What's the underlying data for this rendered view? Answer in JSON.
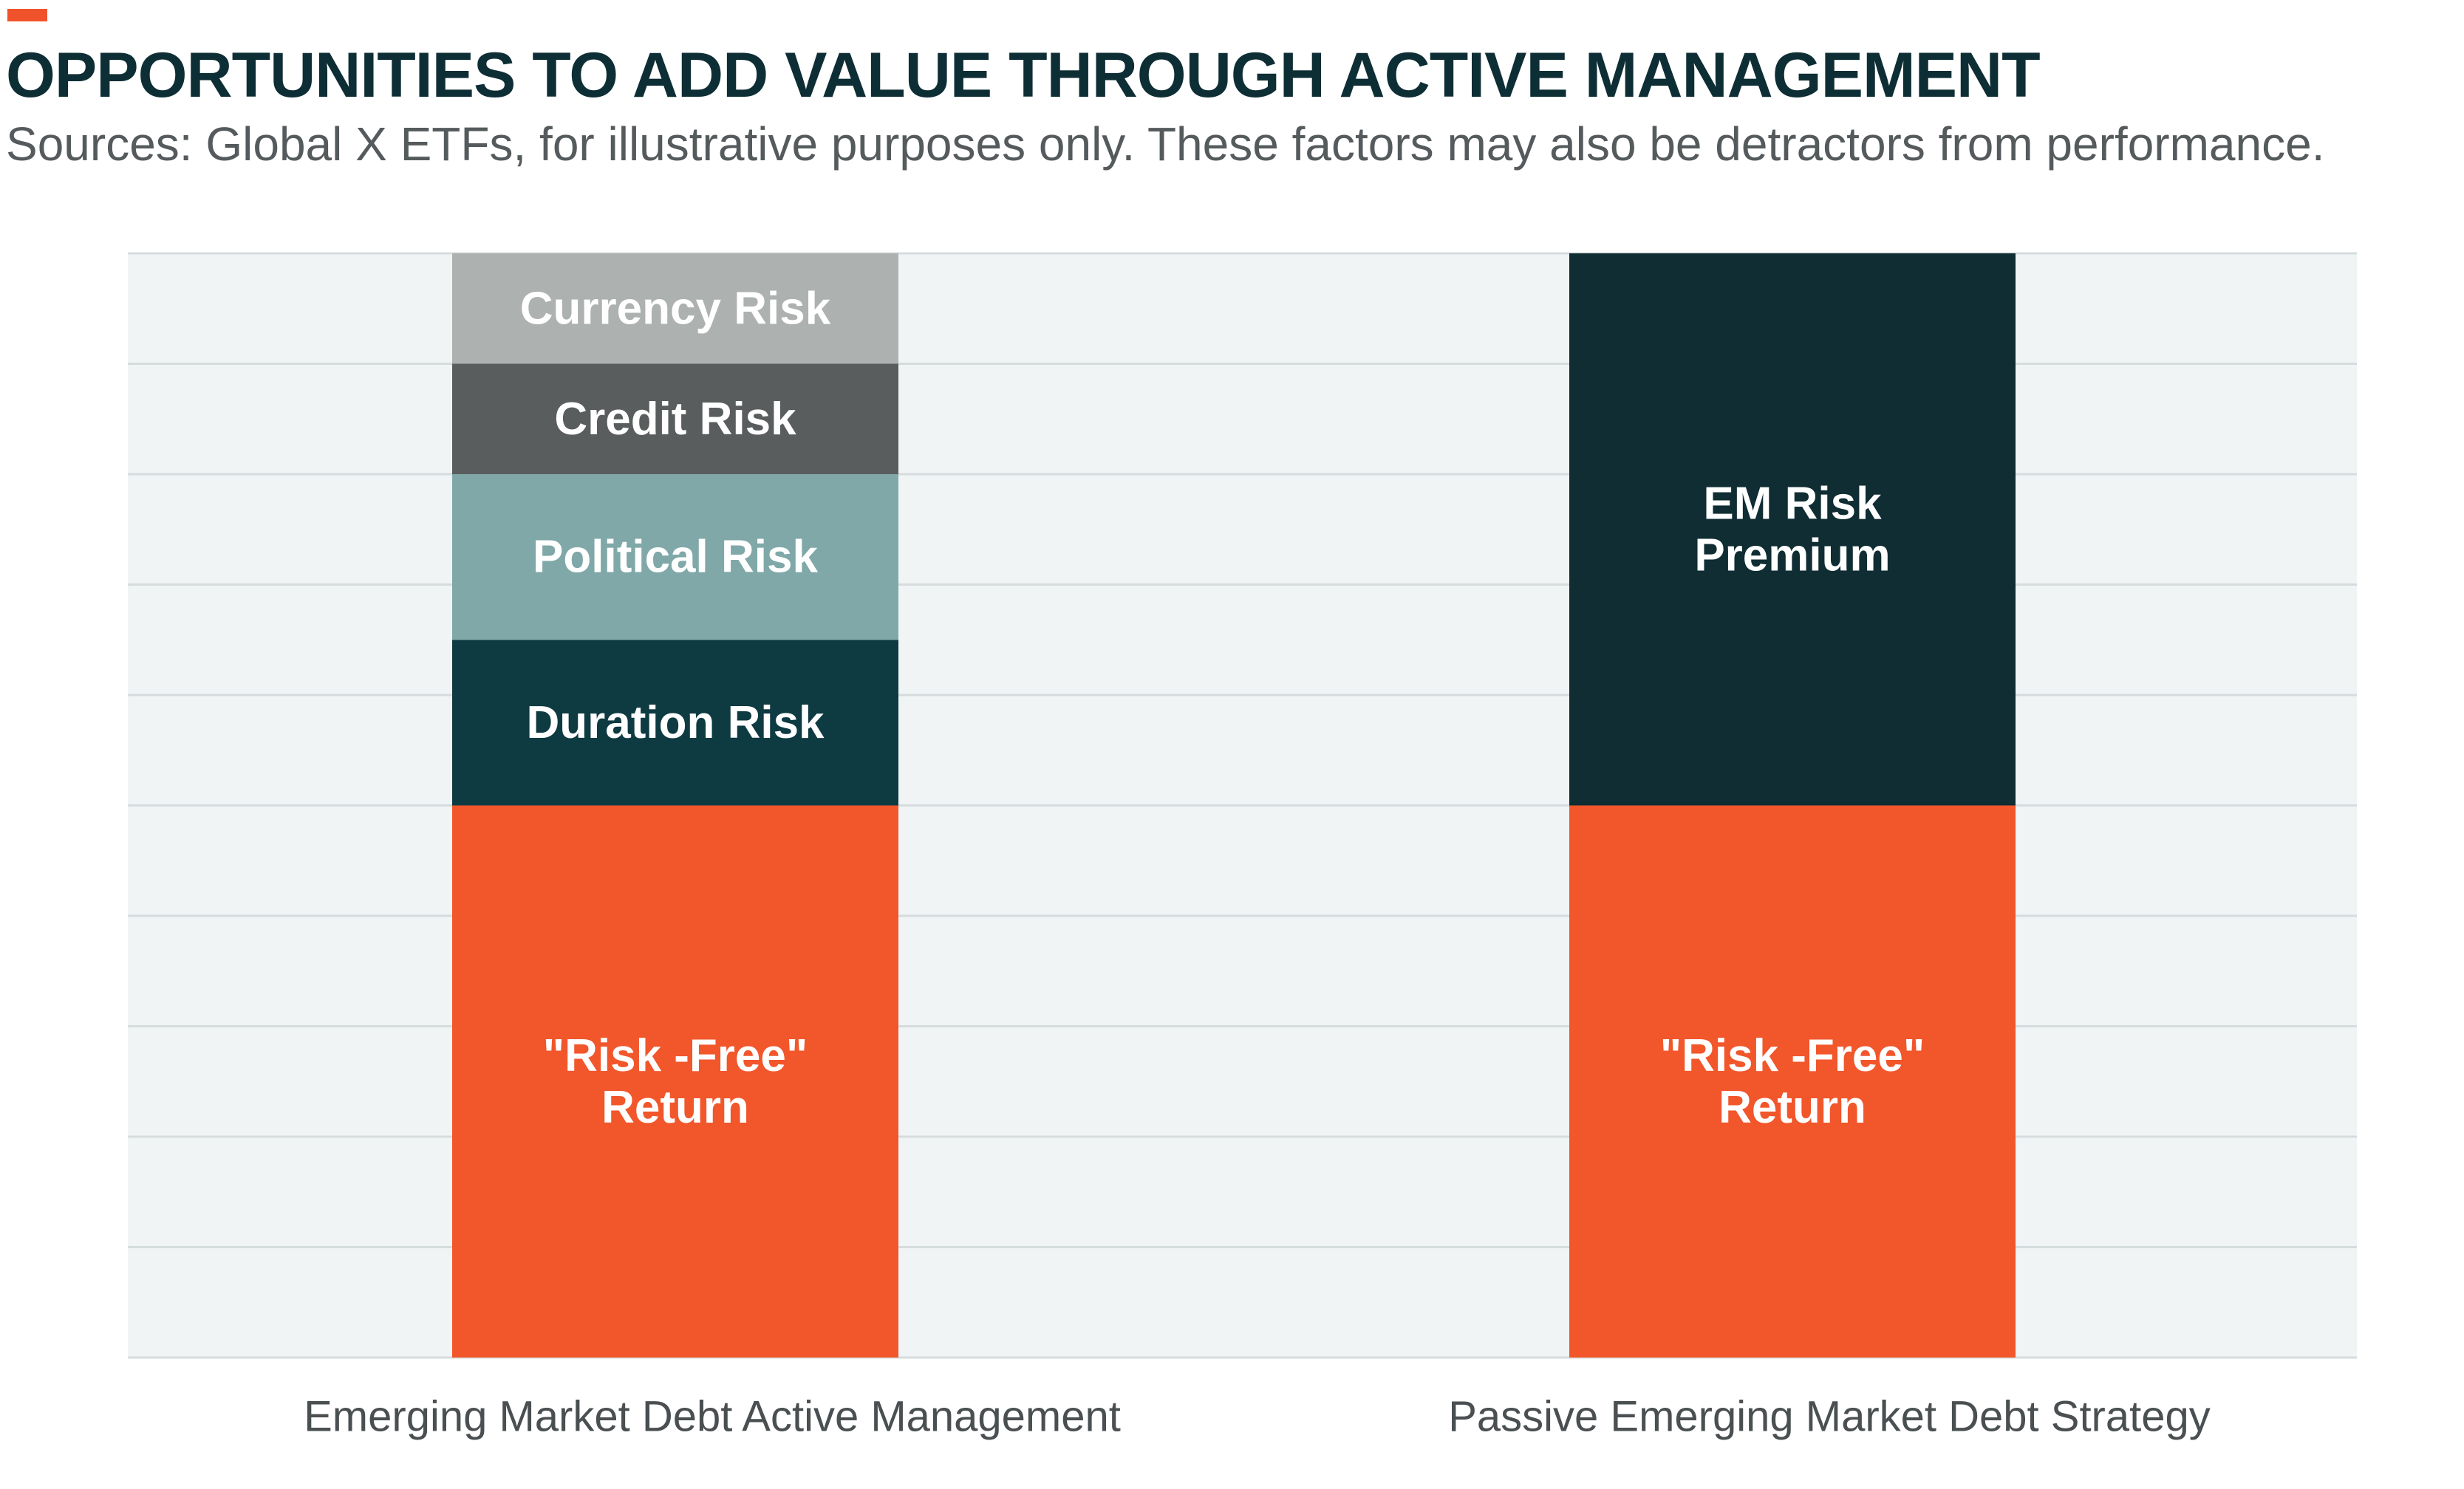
{
  "title": "OPPORTUNITIES TO ADD VALUE THROUGH ACTIVE MANAGEMENT",
  "subtitle": "Sources: Global X ETFs, for illustrative purposes only. These factors may also be detractors from performance.",
  "colors": {
    "accent": "#f0532b",
    "title": "#0e2e35",
    "subtitle": "#555a5c",
    "plot_background": "#f0f4f5",
    "gridline": "#d6dcde",
    "axis_label": "#4a4f51"
  },
  "chart_data": {
    "type": "bar",
    "stacked": true,
    "categories": [
      "Emerging Market Debt Active Management",
      "Passive Emerging Market Debt Strategy"
    ],
    "series": [
      {
        "name": "\"Risk-Free\" Return",
        "label_lines": [
          "\"Risk -Free\"",
          "Return"
        ],
        "values": [
          5,
          5
        ],
        "colors": [
          "#f2562b",
          "#f2562b"
        ],
        "label_color": "#ffffff"
      },
      {
        "name": "Duration Risk",
        "label_lines": [
          "Duration Risk"
        ],
        "values": [
          1.5,
          null
        ],
        "colors": [
          "#0e3a42",
          "#0e3a42"
        ],
        "label_color": "#ffffff"
      },
      {
        "name": "Political Risk",
        "label_lines": [
          "Political Risk"
        ],
        "values": [
          1.5,
          null
        ],
        "colors": [
          "#80a8a8",
          "#80a8a8"
        ],
        "label_color": "#ffffff"
      },
      {
        "name": "Credit Risk",
        "label_lines": [
          "Credit Risk"
        ],
        "values": [
          1,
          null
        ],
        "colors": [
          "#595d5e",
          "#595d5e"
        ],
        "label_color": "#ffffff"
      },
      {
        "name": "Currency Risk",
        "label_lines": [
          "Currency Risk"
        ],
        "values": [
          1,
          null
        ],
        "colors": [
          "#adb1b0",
          "#adb1b0"
        ],
        "label_color": "#ffffff"
      },
      {
        "name": "EM Risk Premium",
        "label_lines": [
          "EM Risk",
          "Premium"
        ],
        "values": [
          null,
          5
        ],
        "colors": [
          "#0f2d33",
          "#0f2d33"
        ],
        "label_color": "#ffffff"
      }
    ],
    "ylim": [
      0,
      10
    ],
    "y_ticks": [
      0,
      1,
      2,
      3,
      4,
      5,
      6,
      7,
      8,
      9,
      10
    ],
    "y_axis_visible": false,
    "grid": true,
    "legend": "none",
    "xlabel": "",
    "ylabel": ""
  }
}
